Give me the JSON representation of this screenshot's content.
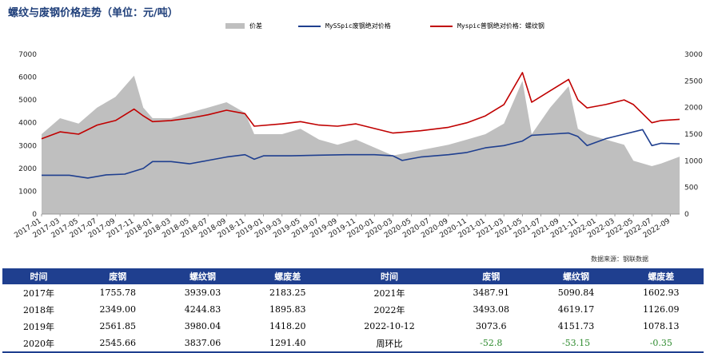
{
  "title": "螺纹与废钢价格走势（单位：元/吨）",
  "legend": [
    {
      "label": "价差",
      "kind": "area",
      "color": "#bfbfbf"
    },
    {
      "label": "MySSpic废钢绝对价格",
      "kind": "line",
      "color": "#1f3f8f"
    },
    {
      "label": "Myspic普钢绝对价格：螺纹钢",
      "kind": "line",
      "color": "#c00000"
    }
  ],
  "chart_data": {
    "type": "line",
    "left_axis": {
      "min": 0,
      "max": 7000,
      "ticks": [
        "0",
        "1000",
        "2000",
        "3000",
        "4000",
        "5000",
        "6000",
        "7000"
      ]
    },
    "right_axis": {
      "min": 0,
      "max": 3000,
      "ticks": [
        "0",
        "500",
        "1000",
        "1500",
        "2000",
        "2500",
        "3000"
      ]
    },
    "x_ticks": [
      "2017-01",
      "2017-03",
      "2017-05",
      "2017-07",
      "2017-09",
      "2017-11",
      "2018-01",
      "2018-03",
      "2018-05",
      "2018-07",
      "2018-09",
      "2018-11",
      "2019-01",
      "2019-03",
      "2019-05",
      "2019-07",
      "2019-09",
      "2019-11",
      "2020-01",
      "2020-03",
      "2020-05",
      "2020-07",
      "2020-09",
      "2020-11",
      "2021-01",
      "2021-03",
      "2021-05",
      "2021-07",
      "2021-09",
      "2021-11",
      "2022-01",
      "2022-03",
      "2022-05",
      "2022-07",
      "2022-09"
    ],
    "x_range": [
      "2017-01",
      "2022-10"
    ],
    "series": [
      {
        "name": "MySSpic废钢绝对价格",
        "axis": "left",
        "color": "#1f3f8f",
        "points": [
          [
            "2017-01",
            1700
          ],
          [
            "2017-04",
            1700
          ],
          [
            "2017-06",
            1580
          ],
          [
            "2017-08",
            1720
          ],
          [
            "2017-10",
            1750
          ],
          [
            "2017-12",
            2000
          ],
          [
            "2018-01",
            2300
          ],
          [
            "2018-03",
            2300
          ],
          [
            "2018-05",
            2200
          ],
          [
            "2018-07",
            2350
          ],
          [
            "2018-09",
            2500
          ],
          [
            "2018-11",
            2600
          ],
          [
            "2018-12",
            2400
          ],
          [
            "2019-01",
            2550
          ],
          [
            "2019-04",
            2550
          ],
          [
            "2019-07",
            2580
          ],
          [
            "2019-10",
            2600
          ],
          [
            "2020-01",
            2600
          ],
          [
            "2020-03",
            2550
          ],
          [
            "2020-04",
            2350
          ],
          [
            "2020-06",
            2500
          ],
          [
            "2020-09",
            2600
          ],
          [
            "2020-11",
            2700
          ],
          [
            "2021-01",
            2900
          ],
          [
            "2021-03",
            3000
          ],
          [
            "2021-05",
            3200
          ],
          [
            "2021-06",
            3450
          ],
          [
            "2021-08",
            3500
          ],
          [
            "2021-10",
            3550
          ],
          [
            "2021-11",
            3400
          ],
          [
            "2021-12",
            3000
          ],
          [
            "2022-02",
            3300
          ],
          [
            "2022-04",
            3500
          ],
          [
            "2022-06",
            3700
          ],
          [
            "2022-07",
            3000
          ],
          [
            "2022-08",
            3100
          ],
          [
            "2022-10",
            3073.6
          ]
        ]
      },
      {
        "name": "Myspic普钢绝对价格：螺纹钢",
        "axis": "left",
        "color": "#c00000",
        "points": [
          [
            "2017-01",
            3300
          ],
          [
            "2017-03",
            3600
          ],
          [
            "2017-05",
            3500
          ],
          [
            "2017-07",
            3900
          ],
          [
            "2017-09",
            4100
          ],
          [
            "2017-11",
            4600
          ],
          [
            "2017-12",
            4300
          ],
          [
            "2018-01",
            4050
          ],
          [
            "2018-03",
            4100
          ],
          [
            "2018-05",
            4200
          ],
          [
            "2018-07",
            4350
          ],
          [
            "2018-09",
            4550
          ],
          [
            "2018-11",
            4400
          ],
          [
            "2018-12",
            3850
          ],
          [
            "2019-03",
            3950
          ],
          [
            "2019-05",
            4050
          ],
          [
            "2019-07",
            3900
          ],
          [
            "2019-09",
            3850
          ],
          [
            "2019-11",
            3950
          ],
          [
            "2020-01",
            3750
          ],
          [
            "2020-03",
            3550
          ],
          [
            "2020-06",
            3650
          ],
          [
            "2020-09",
            3800
          ],
          [
            "2020-11",
            4000
          ],
          [
            "2021-01",
            4300
          ],
          [
            "2021-03",
            4800
          ],
          [
            "2021-05",
            6200
          ],
          [
            "2021-06",
            4900
          ],
          [
            "2021-08",
            5400
          ],
          [
            "2021-10",
            5900
          ],
          [
            "2021-11",
            5000
          ],
          [
            "2021-12",
            4650
          ],
          [
            "2022-02",
            4800
          ],
          [
            "2022-04",
            5000
          ],
          [
            "2022-05",
            4800
          ],
          [
            "2022-07",
            4000
          ],
          [
            "2022-08",
            4100
          ],
          [
            "2022-10",
            4151.73
          ]
        ]
      },
      {
        "name": "价差",
        "axis": "right",
        "color": "#bfbfbf",
        "kind": "area",
        "points": [
          [
            "2017-01",
            1500
          ],
          [
            "2017-03",
            1800
          ],
          [
            "2017-05",
            1700
          ],
          [
            "2017-07",
            2000
          ],
          [
            "2017-09",
            2200
          ],
          [
            "2017-11",
            2600
          ],
          [
            "2017-12",
            2000
          ],
          [
            "2018-01",
            1800
          ],
          [
            "2018-03",
            1800
          ],
          [
            "2018-05",
            1900
          ],
          [
            "2018-07",
            2000
          ],
          [
            "2018-09",
            2100
          ],
          [
            "2018-11",
            1900
          ],
          [
            "2018-12",
            1500
          ],
          [
            "2019-03",
            1500
          ],
          [
            "2019-05",
            1600
          ],
          [
            "2019-07",
            1400
          ],
          [
            "2019-09",
            1300
          ],
          [
            "2019-11",
            1400
          ],
          [
            "2020-01",
            1250
          ],
          [
            "2020-03",
            1100
          ],
          [
            "2020-06",
            1200
          ],
          [
            "2020-09",
            1300
          ],
          [
            "2020-11",
            1400
          ],
          [
            "2021-01",
            1500
          ],
          [
            "2021-03",
            1700
          ],
          [
            "2021-05",
            2500
          ],
          [
            "2021-06",
            1500
          ],
          [
            "2021-08",
            2000
          ],
          [
            "2021-10",
            2400
          ],
          [
            "2021-11",
            1600
          ],
          [
            "2021-12",
            1500
          ],
          [
            "2022-02",
            1400
          ],
          [
            "2022-04",
            1300
          ],
          [
            "2022-05",
            1000
          ],
          [
            "2022-07",
            900
          ],
          [
            "2022-08",
            950
          ],
          [
            "2022-10",
            1078.13
          ]
        ]
      }
    ]
  },
  "source": "数据来源：钢联数据",
  "table": {
    "headers": [
      "时间",
      "废钢",
      "螺纹钢",
      "螺废差",
      "时间",
      "废钢",
      "螺纹钢",
      "螺废差"
    ],
    "rows": [
      [
        "2017年",
        "1755.78",
        "3939.03",
        "2183.25",
        "2021年",
        "3487.91",
        "5090.84",
        "1602.93"
      ],
      [
        "2018年",
        "2349.00",
        "4244.83",
        "1895.83",
        "2022年",
        "3493.08",
        "4619.17",
        "1126.09"
      ],
      [
        "2019年",
        "2561.85",
        "3980.04",
        "1418.20",
        "2022-10-12",
        "3073.6",
        "4151.73",
        "1078.13"
      ],
      [
        "2020年",
        "2545.66",
        "3837.06",
        "1291.40",
        "周环比",
        "-52.8",
        "-53.15",
        "-0.35"
      ]
    ]
  }
}
